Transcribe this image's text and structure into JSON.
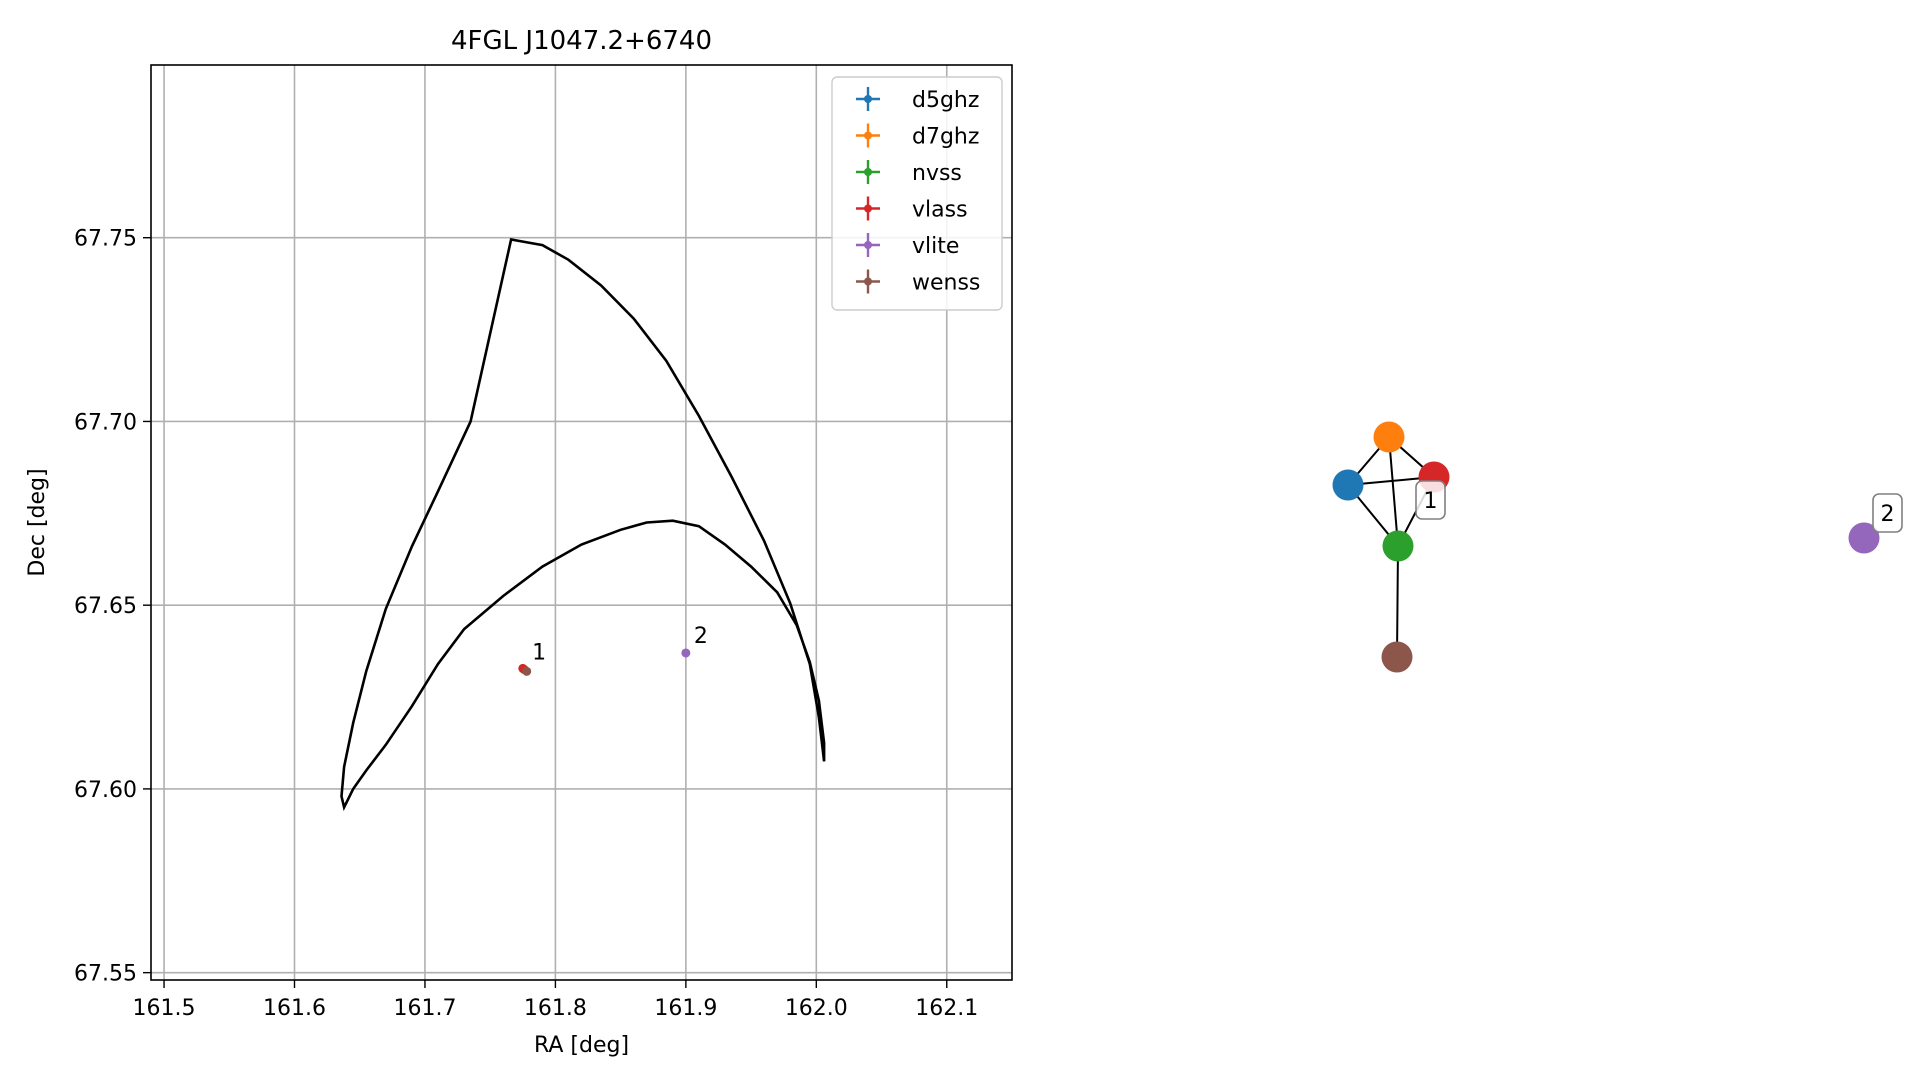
{
  "chart_data": [
    {
      "type": "scatter",
      "title": "4FGL J1047.2+6740",
      "xlabel": "RA [deg]",
      "ylabel": "Dec [deg]",
      "xlim": [
        161.49,
        162.15
      ],
      "ylim": [
        67.548,
        67.797
      ],
      "x_ticks": [
        161.5,
        161.6,
        161.7,
        161.8,
        161.9,
        162.0,
        162.1
      ],
      "y_ticks": [
        67.55,
        67.6,
        67.65,
        67.7,
        67.75
      ],
      "x_tick_labels": [
        "161.5",
        "161.6",
        "161.7",
        "161.8",
        "161.9",
        "162.0",
        "162.1"
      ],
      "y_tick_labels": [
        "67.55",
        "67.60",
        "67.65",
        "67.70",
        "67.75"
      ],
      "grid": true,
      "legend_position": "top-right",
      "series": [
        {
          "name": "d5ghz",
          "color": "#1f77b4",
          "x": [
            161.776
          ],
          "y": [
            67.6325
          ]
        },
        {
          "name": "d7ghz",
          "color": "#ff7f0e",
          "x": [
            161.776
          ],
          "y": [
            67.6325
          ]
        },
        {
          "name": "nvss",
          "color": "#2ca02c",
          "x": [
            161.776
          ],
          "y": [
            67.6325
          ]
        },
        {
          "name": "vlass",
          "color": "#d62728",
          "x": [
            161.775
          ],
          "y": [
            67.6328
          ]
        },
        {
          "name": "vlite",
          "color": "#9467bd",
          "x": [
            161.9
          ],
          "y": [
            67.637
          ]
        },
        {
          "name": "wenss",
          "color": "#8c564b",
          "x": [
            161.778
          ],
          "y": [
            67.632
          ]
        }
      ],
      "ellipse": {
        "x": [
          161.766,
          161.79,
          161.81,
          161.835,
          161.86,
          161.885,
          161.91,
          161.935,
          161.96,
          161.98,
          161.995,
          162.002,
          162.006,
          162.006,
          162.002,
          161.995,
          161.985,
          161.97,
          161.95,
          161.93,
          161.91,
          161.89,
          161.87,
          161.85,
          161.82,
          161.79,
          161.76,
          161.73,
          161.71,
          161.69,
          161.67,
          161.655,
          161.645,
          161.638,
          161.636,
          161.638,
          161.645,
          161.655,
          161.67,
          161.69,
          161.71,
          161.735,
          161.766
        ],
        "y": [
          67.7495,
          67.748,
          67.744,
          67.737,
          67.728,
          67.7165,
          67.7015,
          67.685,
          67.6675,
          67.6505,
          67.634,
          67.6195,
          67.6075,
          67.6125,
          67.624,
          67.6345,
          67.6445,
          67.6535,
          67.6605,
          67.6665,
          67.6715,
          67.673,
          67.6725,
          67.6705,
          67.6665,
          67.6605,
          67.6525,
          67.6435,
          67.634,
          67.6225,
          67.612,
          67.605,
          67.6,
          67.595,
          67.598,
          67.606,
          67.618,
          67.632,
          67.649,
          67.666,
          67.681,
          67.7,
          67.7495
        ]
      },
      "ellipse_color": "#000000",
      "point_labels": [
        {
          "text": "1",
          "x": 161.776,
          "y": 67.6325
        },
        {
          "text": "2",
          "x": 161.9,
          "y": 67.637
        }
      ]
    }
  ],
  "graph": {
    "nodes": [
      {
        "id": "d5ghz",
        "color": "#1f77b4"
      },
      {
        "id": "d7ghz",
        "color": "#ff7f0e"
      },
      {
        "id": "vlass",
        "color": "#d62728"
      },
      {
        "id": "nvss",
        "color": "#2ca02c"
      },
      {
        "id": "wenss",
        "color": "#8c564b"
      },
      {
        "id": "vlite",
        "color": "#9467bd"
      }
    ],
    "edges": [
      [
        "d5ghz",
        "d7ghz"
      ],
      [
        "d5ghz",
        "vlass"
      ],
      [
        "d5ghz",
        "nvss"
      ],
      [
        "d7ghz",
        "vlass"
      ],
      [
        "d7ghz",
        "nvss"
      ],
      [
        "vlass",
        "nvss"
      ],
      [
        "nvss",
        "wenss"
      ]
    ],
    "labels": [
      {
        "text": "1",
        "near": "vlass"
      },
      {
        "text": "2",
        "near": "vlite"
      }
    ]
  }
}
